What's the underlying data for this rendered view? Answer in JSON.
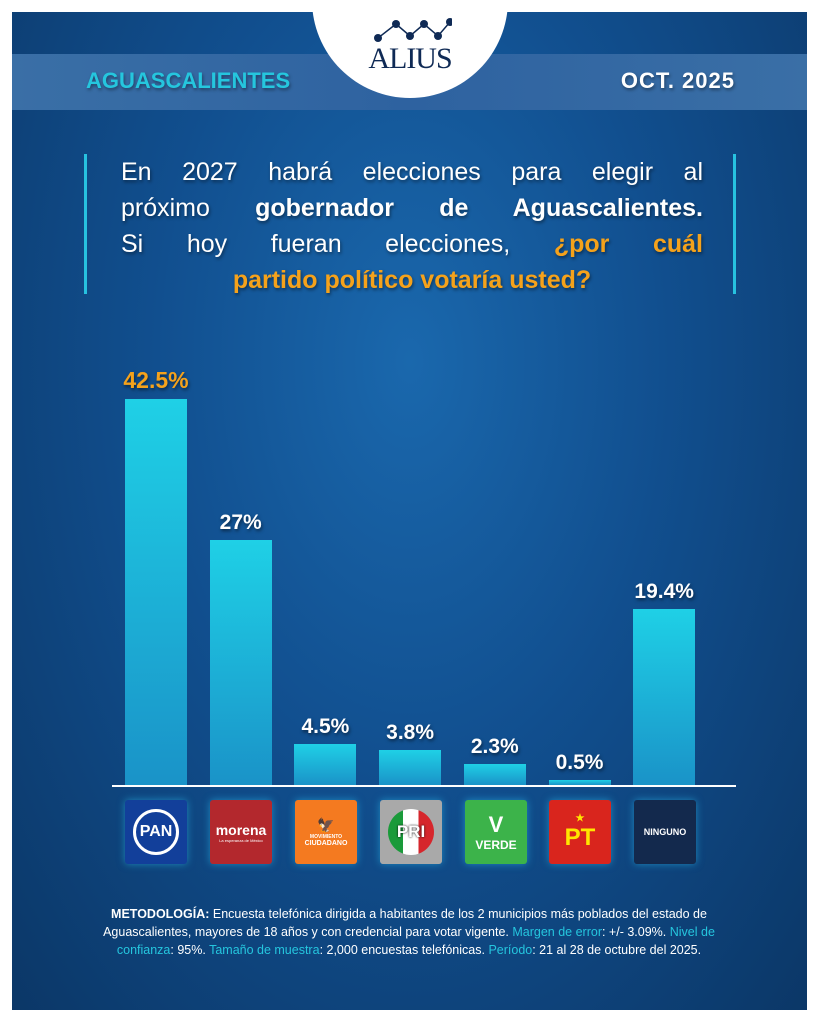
{
  "header": {
    "brand": "ALIUS",
    "state": "AGUASCALIENTES",
    "date": "OCT. 2025"
  },
  "question": {
    "l1": "En 2027 habrá elecciones para elegir al",
    "l2a": "próximo ",
    "l2b": "gobernador de Aguascalientes.",
    "l3a": "Si hoy fueran elecciones, ",
    "l3b": "¿por cuál",
    "l4": "partido político votaría usted?"
  },
  "chart_data": {
    "type": "bar",
    "title": "¿por cuál partido político votaría usted?",
    "categories": [
      "PAN",
      "morena",
      "MOVIMIENTO CIUDADANO",
      "PRI",
      "VERDE",
      "PT",
      "NINGUNO"
    ],
    "values": [
      42.5,
      27,
      4.5,
      3.8,
      2.3,
      0.5,
      19.4
    ],
    "labels": [
      "42.5%",
      "27%",
      "4.5%",
      "3.8%",
      "2.3%",
      "0.5%",
      "19.4%"
    ],
    "ylim": [
      0,
      45
    ],
    "grid": false
  },
  "logos": {
    "pan": "PAN",
    "morena": "morena",
    "morena_sub": "La esperanza de México",
    "mc1": "MOVIMIENTO",
    "mc2": "CIUDADANO",
    "pri": "PRI",
    "verde": "VERDE",
    "pt": "PT",
    "ninguno": "NINGUNO"
  },
  "methodology": {
    "h": "METODOLOGÍA:",
    "t1": " Encuesta telefónica dirigida a habitantes de los 2 municipios más poblados del estado de Aguascalientes, mayores de 18 años y con credencial para votar vigente. ",
    "k1": "Margen de error",
    "t2": ": +/- 3.09%. ",
    "k2": "Nivel de confianza",
    "t3": ": 95%. ",
    "k3": "Tamaño de muestra",
    "t4": ": 2,000 encuestas telefónicas. ",
    "k4": "Período",
    "t5": ": 21 al 28 de octubre del 2025."
  },
  "colors": {
    "bar": "#1fd0e6",
    "accent": "#f5a21b",
    "cyan": "#25c6de"
  }
}
